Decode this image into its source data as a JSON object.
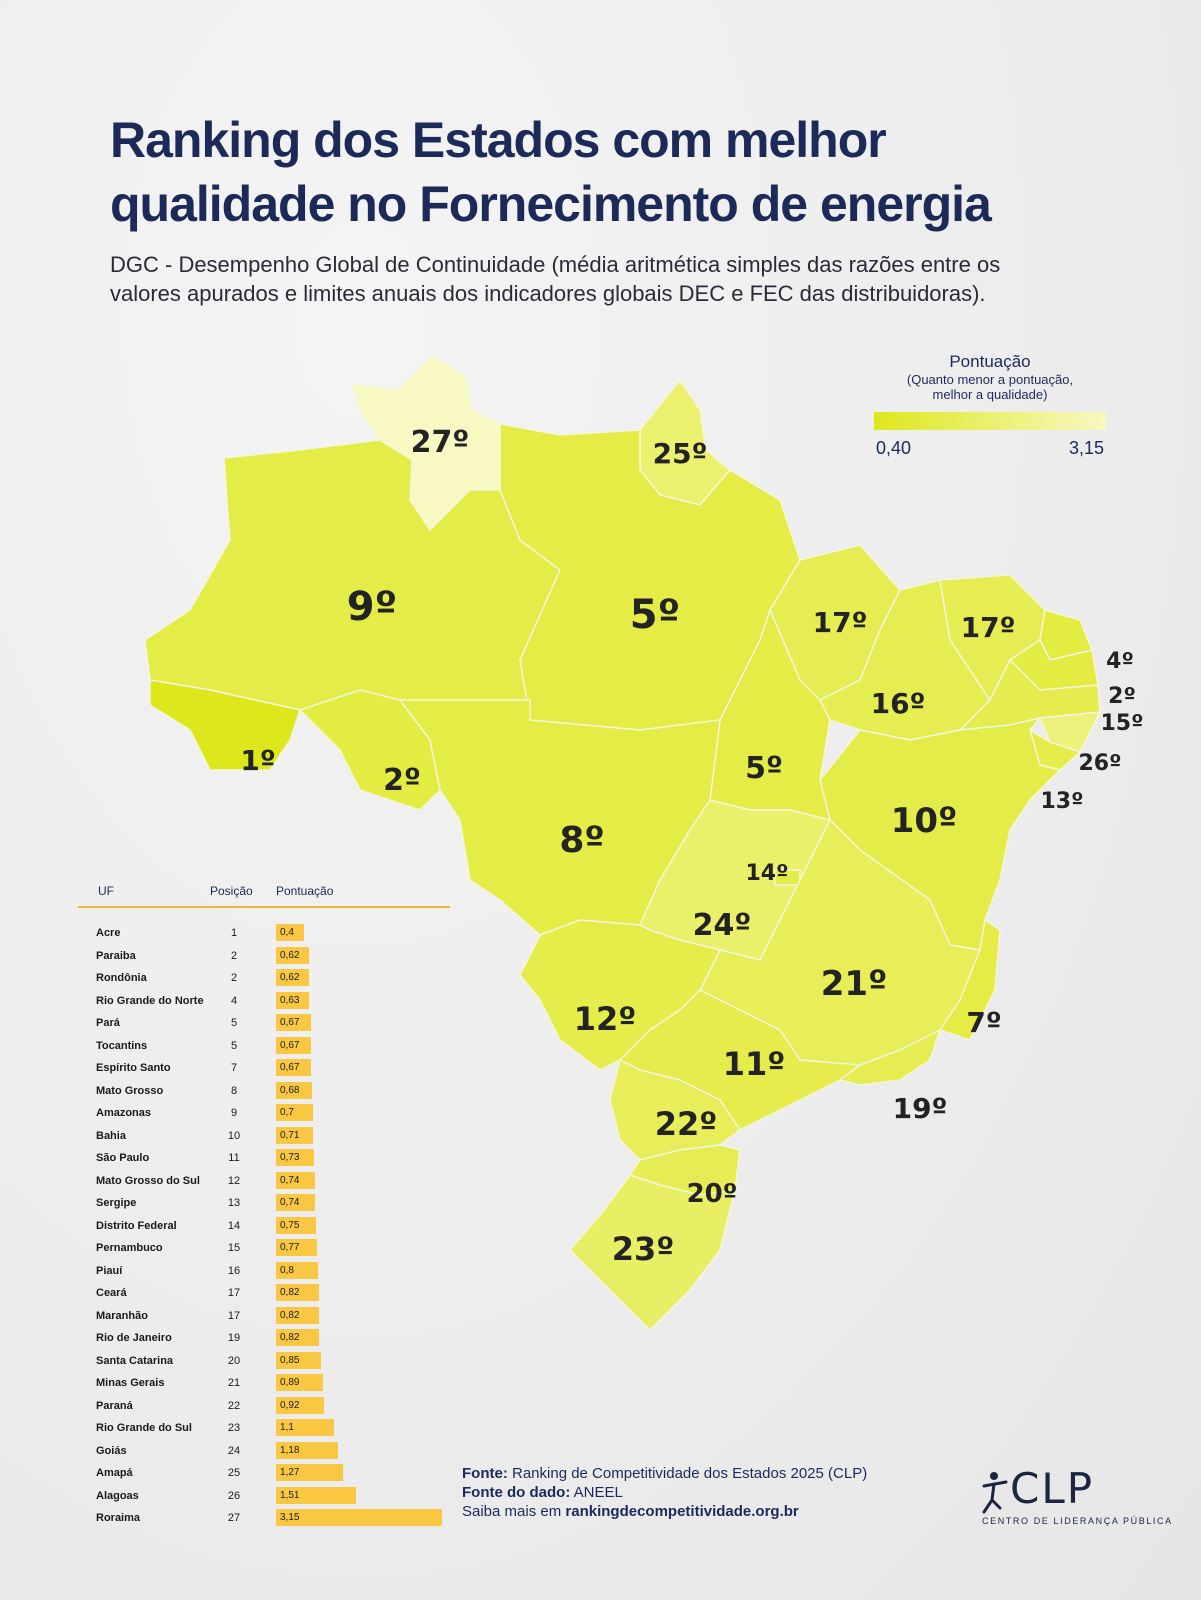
{
  "header": {
    "title_line1": "Ranking dos Estados com melhor",
    "title_line2": "qualidade no Fornecimento de energia",
    "subtitle": "DGC - Desempenho Global de Continuidade (média aritmética simples das razões entre os valores apurados e limites anuais dos indicadores globais DEC e FEC das distribuidoras)."
  },
  "legend": {
    "title": "Pontuação",
    "note": "(Quanto menor a pontuação, melhor a qualidade)",
    "min_label": "0,40",
    "max_label": "3,15",
    "min_value": 0.4,
    "max_value": 3.15,
    "color_min": "#dde81c",
    "color_max": "#f8f8c2"
  },
  "map_labels": [
    {
      "state": "Roraima",
      "rank": "27º"
    },
    {
      "state": "Amapá",
      "rank": "25º"
    },
    {
      "state": "Amazonas",
      "rank": "9º"
    },
    {
      "state": "Pará",
      "rank": "5º"
    },
    {
      "state": "Maranhão",
      "rank": "17º"
    },
    {
      "state": "Ceará",
      "rank": "17º"
    },
    {
      "state": "Rio Grande do Norte",
      "rank": "4º"
    },
    {
      "state": "Paraíba",
      "rank": "2º"
    },
    {
      "state": "Pernambuco",
      "rank": "15º"
    },
    {
      "state": "Alagoas",
      "rank": "26º"
    },
    {
      "state": "Sergipe",
      "rank": "13º"
    },
    {
      "state": "Piauí",
      "rank": "16º"
    },
    {
      "state": "Acre",
      "rank": "1º"
    },
    {
      "state": "Rondônia",
      "rank": "2º"
    },
    {
      "state": "Tocantins",
      "rank": "5º"
    },
    {
      "state": "Bahia",
      "rank": "10º"
    },
    {
      "state": "Mato Grosso",
      "rank": "8º"
    },
    {
      "state": "Distrito Federal",
      "rank": "14º"
    },
    {
      "state": "Goiás",
      "rank": "24º"
    },
    {
      "state": "Minas Gerais",
      "rank": "21º"
    },
    {
      "state": "Espírito Santo",
      "rank": "7º"
    },
    {
      "state": "Mato Grosso do Sul",
      "rank": "12º"
    },
    {
      "state": "São Paulo",
      "rank": "11º"
    },
    {
      "state": "Rio de Janeiro",
      "rank": "19º"
    },
    {
      "state": "Paraná",
      "rank": "22º"
    },
    {
      "state": "Santa Catarina",
      "rank": "20º"
    },
    {
      "state": "Rio Grande do Sul",
      "rank": "23º"
    }
  ],
  "table": {
    "headers": {
      "uf": "UF",
      "position": "Posição",
      "score": "Pontuação"
    },
    "bar_color": "#f9c741",
    "rows": [
      {
        "uf": "Acre",
        "position": "1",
        "score": "0,4",
        "value": 0.4
      },
      {
        "uf": "Paraiba",
        "position": "2",
        "score": "0,62",
        "value": 0.62
      },
      {
        "uf": "Rondônia",
        "position": "2",
        "score": "0,62",
        "value": 0.62
      },
      {
        "uf": "Rio Grande do Norte",
        "position": "4",
        "score": "0,63",
        "value": 0.63
      },
      {
        "uf": "Pará",
        "position": "5",
        "score": "0,67",
        "value": 0.67
      },
      {
        "uf": "Tocantins",
        "position": "5",
        "score": "0,67",
        "value": 0.67
      },
      {
        "uf": "Espírito Santo",
        "position": "7",
        "score": "0,67",
        "value": 0.67
      },
      {
        "uf": "Mato Grosso",
        "position": "8",
        "score": "0,68",
        "value": 0.68
      },
      {
        "uf": "Amazonas",
        "position": "9",
        "score": "0,7",
        "value": 0.7
      },
      {
        "uf": "Bahia",
        "position": "10",
        "score": "0,71",
        "value": 0.71
      },
      {
        "uf": "São Paulo",
        "position": "11",
        "score": "0,73",
        "value": 0.73
      },
      {
        "uf": "Mato Grosso do Sul",
        "position": "12",
        "score": "0,74",
        "value": 0.74
      },
      {
        "uf": "Sergipe",
        "position": "13",
        "score": "0,74",
        "value": 0.74
      },
      {
        "uf": "Distrito Federal",
        "position": "14",
        "score": "0,75",
        "value": 0.75
      },
      {
        "uf": "Pernambuco",
        "position": "15",
        "score": "0,77",
        "value": 0.77
      },
      {
        "uf": "Piauí",
        "position": "16",
        "score": "0,8",
        "value": 0.8
      },
      {
        "uf": "Ceará",
        "position": "17",
        "score": "0,82",
        "value": 0.82
      },
      {
        "uf": "Maranhão",
        "position": "17",
        "score": "0,82",
        "value": 0.82
      },
      {
        "uf": "Rio de Janeiro",
        "position": "19",
        "score": "0,82",
        "value": 0.82
      },
      {
        "uf": "Santa Catarina",
        "position": "20",
        "score": "0,85",
        "value": 0.85
      },
      {
        "uf": "Minas Gerais",
        "position": "21",
        "score": "0,89",
        "value": 0.89
      },
      {
        "uf": "Paraná",
        "position": "22",
        "score": "0,92",
        "value": 0.92
      },
      {
        "uf": "Rio Grande do Sul",
        "position": "23",
        "score": "1,1",
        "value": 1.1
      },
      {
        "uf": "Goiás",
        "position": "24",
        "score": "1,18",
        "value": 1.18
      },
      {
        "uf": "Amapá",
        "position": "25",
        "score": "1,27",
        "value": 1.27
      },
      {
        "uf": "Alagoas",
        "position": "26",
        "score": "1,51",
        "value": 1.51
      },
      {
        "uf": "Roraima",
        "position": "27",
        "score": "3,15",
        "value": 3.15
      }
    ]
  },
  "footer": {
    "source_label": "Fonte:",
    "source_text": "Ranking de Competitividade dos Estados 2025 (CLP)",
    "data_source_label": "Fonte do dado:",
    "data_source_text": "ANEEL",
    "more_text": "Saiba mais em",
    "more_link": "rankingdecompetitividade.org.br"
  },
  "logo": {
    "text": "CLP",
    "subtitle": "CENTRO DE LIDERANÇA PÚBLICA"
  }
}
